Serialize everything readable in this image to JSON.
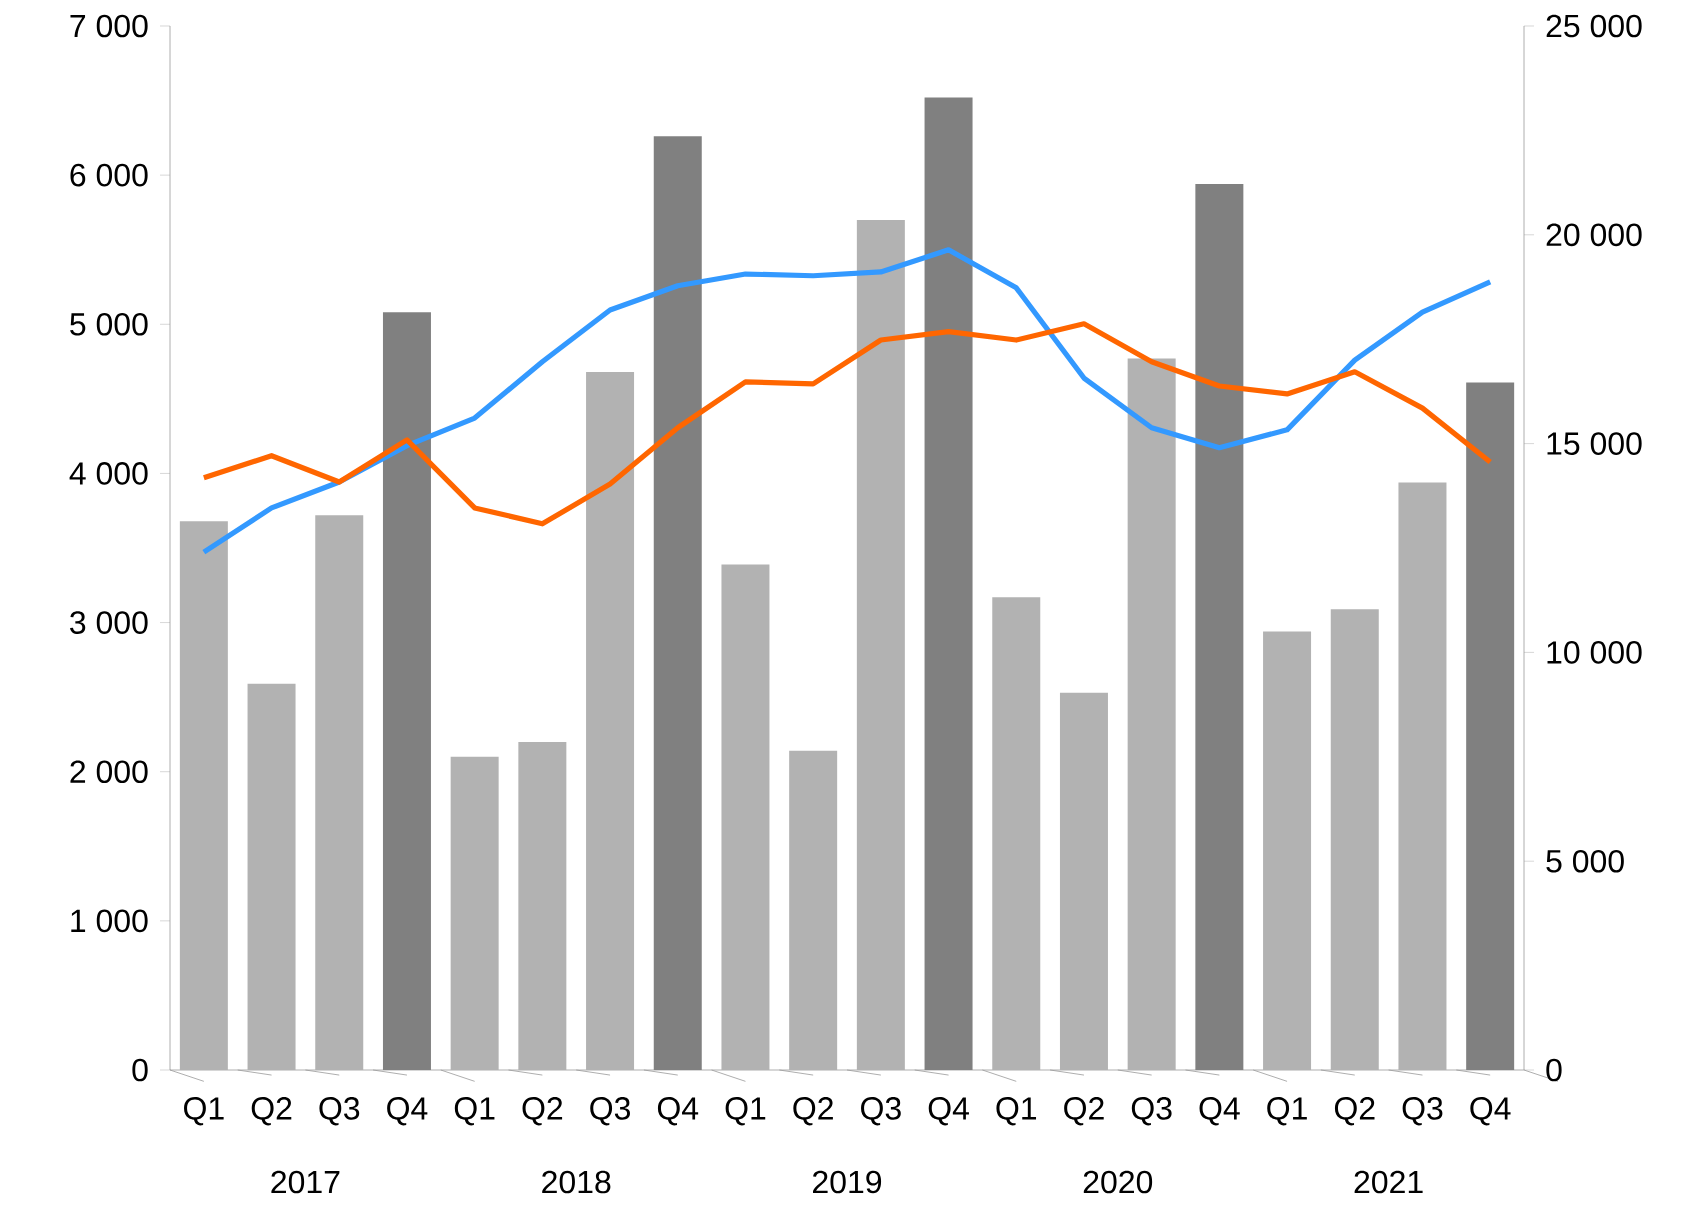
{
  "chart_data": {
    "type": "bar",
    "categories": [
      "Q1",
      "Q2",
      "Q3",
      "Q4",
      "Q1",
      "Q2",
      "Q3",
      "Q4",
      "Q1",
      "Q2",
      "Q3",
      "Q4",
      "Q1",
      "Q2",
      "Q3",
      "Q4",
      "Q1",
      "Q2",
      "Q3",
      "Q4"
    ],
    "series": [
      {
        "axis": "y",
        "colors": [
          "#b2b2b2",
          "#b2b2b2",
          "#b2b2b2",
          "#808080",
          "#b2b2b2",
          "#b2b2b2",
          "#b2b2b2",
          "#808080",
          "#b2b2b2",
          "#b2b2b2",
          "#b2b2b2",
          "#808080",
          "#b2b2b2",
          "#b2b2b2",
          "#b2b2b2",
          "#808080",
          "#b2b2b2",
          "#b2b2b2",
          "#b2b2b2",
          "#808080"
        ],
        "values": [
          3680,
          2590,
          3720,
          5080,
          2100,
          2200,
          4680,
          6260,
          3390,
          2140,
          5700,
          6520,
          3170,
          2530,
          4770,
          5940,
          2940,
          3090,
          3940,
          4610
        ]
      },
      {
        "type": "line",
        "axis": "y2",
        "color": "#3399ff",
        "values": [
          12400,
          13460,
          14080,
          14950,
          15610,
          16960,
          18200,
          18780,
          19060,
          19020,
          19110,
          19640,
          18730,
          16570,
          15380,
          14900,
          15330,
          17000,
          18150,
          18870
        ]
      },
      {
        "type": "line",
        "axis": "y2",
        "color": "#ff6600",
        "values": [
          14180,
          14710,
          14080,
          15090,
          13460,
          13080,
          14030,
          15380,
          16480,
          16430,
          17480,
          17680,
          17480,
          17870,
          16960,
          16380,
          16190,
          16720,
          15850,
          14560
        ]
      }
    ],
    "ylim": [
      0,
      7000
    ],
    "yticks": [
      {
        "value": 0,
        "label": "0"
      },
      {
        "value": 1000,
        "label": "1 000"
      },
      {
        "value": 2000,
        "label": "2 000"
      },
      {
        "value": 3000,
        "label": "3 000"
      },
      {
        "value": 4000,
        "label": "4 000"
      },
      {
        "value": 5000,
        "label": "5 000"
      },
      {
        "value": 6000,
        "label": "6 000"
      },
      {
        "value": 7000,
        "label": "7 000"
      }
    ],
    "y2lim": [
      0,
      25000
    ],
    "y2ticks": [
      {
        "value": 0,
        "label": "0"
      },
      {
        "value": 5000,
        "label": "5 000"
      },
      {
        "value": 10000,
        "label": "10 000"
      },
      {
        "value": 15000,
        "label": "15 000"
      },
      {
        "value": 20000,
        "label": "20 000"
      },
      {
        "value": 25000,
        "label": "25 000"
      }
    ],
    "annotations": [
      "2017",
      "2018",
      "2019",
      "2020",
      "2021"
    ],
    "grid": false,
    "marker": "none",
    "line_style": "solid"
  }
}
